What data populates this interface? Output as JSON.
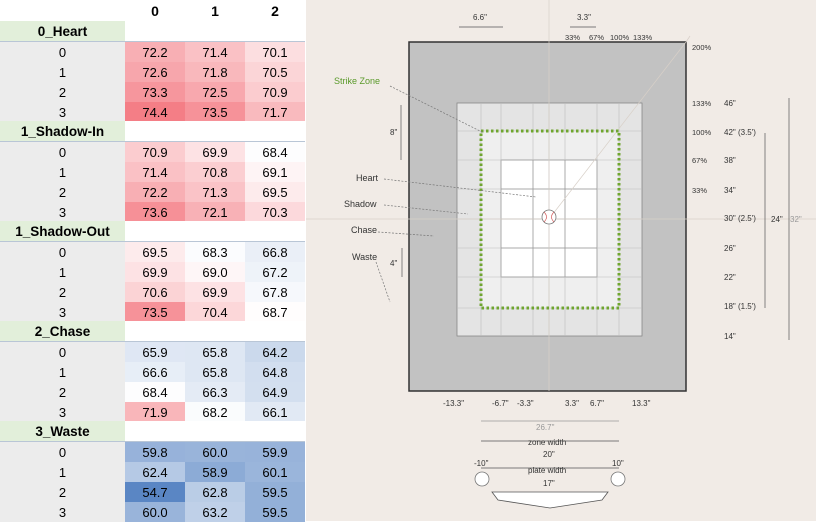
{
  "table": {
    "columns": [
      "0",
      "1",
      "2"
    ],
    "colors": {
      "red_max": "#f47e86",
      "blue_max": "#5a86c4",
      "mid": "#ffffff",
      "group_bg": "#e2efda",
      "index_bg": "#ececec"
    },
    "groups": [
      {
        "name": "0_Heart",
        "rows": [
          {
            "idx": "0",
            "values": [
              "72.2",
              "71.4",
              "70.1"
            ]
          },
          {
            "idx": "1",
            "values": [
              "72.6",
              "71.8",
              "70.5"
            ]
          },
          {
            "idx": "2",
            "values": [
              "73.3",
              "72.5",
              "70.9"
            ]
          },
          {
            "idx": "3",
            "values": [
              "74.4",
              "73.5",
              "71.7"
            ]
          }
        ]
      },
      {
        "name": "1_Shadow-In",
        "rows": [
          {
            "idx": "0",
            "values": [
              "70.9",
              "69.9",
              "68.4"
            ]
          },
          {
            "idx": "1",
            "values": [
              "71.4",
              "70.8",
              "69.1"
            ]
          },
          {
            "idx": "2",
            "values": [
              "72.2",
              "71.3",
              "69.5"
            ]
          },
          {
            "idx": "3",
            "values": [
              "73.6",
              "72.1",
              "70.3"
            ]
          }
        ]
      },
      {
        "name": "1_Shadow-Out",
        "rows": [
          {
            "idx": "0",
            "values": [
              "69.5",
              "68.3",
              "66.8"
            ]
          },
          {
            "idx": "1",
            "values": [
              "69.9",
              "69.0",
              "67.2"
            ]
          },
          {
            "idx": "2",
            "values": [
              "70.6",
              "69.9",
              "67.8"
            ]
          },
          {
            "idx": "3",
            "values": [
              "73.5",
              "70.4",
              "68.7"
            ]
          }
        ]
      },
      {
        "name": "2_Chase",
        "rows": [
          {
            "idx": "0",
            "values": [
              "65.9",
              "65.8",
              "64.2"
            ]
          },
          {
            "idx": "1",
            "values": [
              "66.6",
              "65.8",
              "64.8"
            ]
          },
          {
            "idx": "2",
            "values": [
              "68.4",
              "66.3",
              "64.9"
            ]
          },
          {
            "idx": "3",
            "values": [
              "71.9",
              "68.2",
              "66.1"
            ]
          }
        ]
      },
      {
        "name": "3_Waste",
        "rows": [
          {
            "idx": "0",
            "values": [
              "59.8",
              "60.0",
              "59.9"
            ]
          },
          {
            "idx": "1",
            "values": [
              "62.4",
              "58.9",
              "60.1"
            ]
          },
          {
            "idx": "2",
            "values": [
              "54.7",
              "62.8",
              "59.5"
            ]
          },
          {
            "idx": "3",
            "values": [
              "60.0",
              "63.2",
              "59.5"
            ]
          }
        ]
      }
    ]
  },
  "diagram": {
    "colors": {
      "bg": "#f1ebe6",
      "waste": "#c2c2c2",
      "chase": "#e4e4e4",
      "shadow": "#efefef",
      "heart": "#ffffff",
      "zone_line": "#6fa52f",
      "zone_label": "#5a9a2a"
    },
    "labels": {
      "strike_zone": "Strike Zone",
      "heart": "Heart",
      "shadow": "Shadow",
      "chase": "Chase",
      "waste": "Waste",
      "top_6_6": "6.6\"",
      "top_3_3": "3.3\"",
      "pct_33": "33%",
      "pct_67": "67%",
      "pct_100": "100%",
      "pct_133": "133%",
      "pct_200": "200%",
      "left_8": "8\"",
      "left_4": "4\"",
      "zone_width": "zone width",
      "zone_width_val": "20\"",
      "plate_width": "plate width",
      "plate_width_val": "17\"",
      "neg_10": "-10\"",
      "pos_10": "10\"",
      "width_26_7": "26.7\"",
      "height_24": "24\"",
      "height_32": "32\""
    },
    "right_rows": [
      {
        "pct": "133%",
        "inch": "46\""
      },
      {
        "pct": "100%",
        "inch": "42\" (3.5')"
      },
      {
        "pct": "67%",
        "inch": "38\""
      },
      {
        "pct": "33%",
        "inch": "34\""
      },
      {
        "pct": "",
        "inch": "30\" (2.5')"
      },
      {
        "pct": "",
        "inch": "26\""
      },
      {
        "pct": "",
        "inch": "22\""
      },
      {
        "pct": "",
        "inch": "18\" (1.5')"
      },
      {
        "pct": "",
        "inch": "14\""
      }
    ],
    "bottom_ticks": [
      "-13.3\"",
      "-6.7\"",
      "-3.3\"",
      "3.3\"",
      "6.7\"",
      "13.3\""
    ]
  }
}
